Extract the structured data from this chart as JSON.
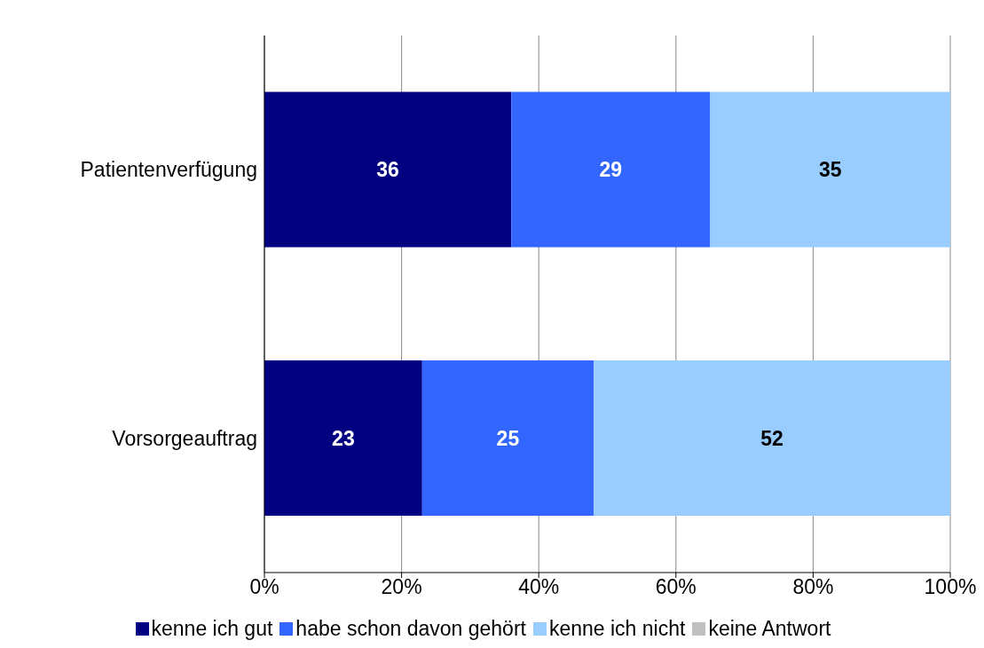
{
  "chart_data": {
    "type": "bar",
    "orientation": "horizontal",
    "stacked": true,
    "categories": [
      "Patientenverfügung",
      "Vorsorgeauftrag"
    ],
    "series": [
      {
        "name": "kenne ich gut",
        "color": "#000080",
        "values": [
          36,
          23
        ],
        "value_labels": [
          "36",
          "23"
        ]
      },
      {
        "name": "habe schon davon gehört",
        "color": "#3366ff",
        "values": [
          29,
          25
        ],
        "value_labels": [
          "29",
          "25"
        ]
      },
      {
        "name": "kenne ich nicht",
        "color": "#99ccff",
        "values": [
          35,
          52
        ],
        "value_labels": [
          "35",
          "52"
        ]
      },
      {
        "name": "keine Antwort",
        "color": "#c0c0c0",
        "values": [
          0,
          0
        ],
        "value_labels": [
          null,
          null
        ]
      }
    ],
    "xlim": [
      0,
      100
    ],
    "xticks": [
      {
        "value": 0,
        "label": "0%"
      },
      {
        "value": 20,
        "label": "20%"
      },
      {
        "value": 40,
        "label": "40%"
      },
      {
        "value": 60,
        "label": "60%"
      },
      {
        "value": 80,
        "label": "80%"
      },
      {
        "value": 100,
        "label": "100%"
      }
    ],
    "grid": "x",
    "legend": "bottom"
  }
}
